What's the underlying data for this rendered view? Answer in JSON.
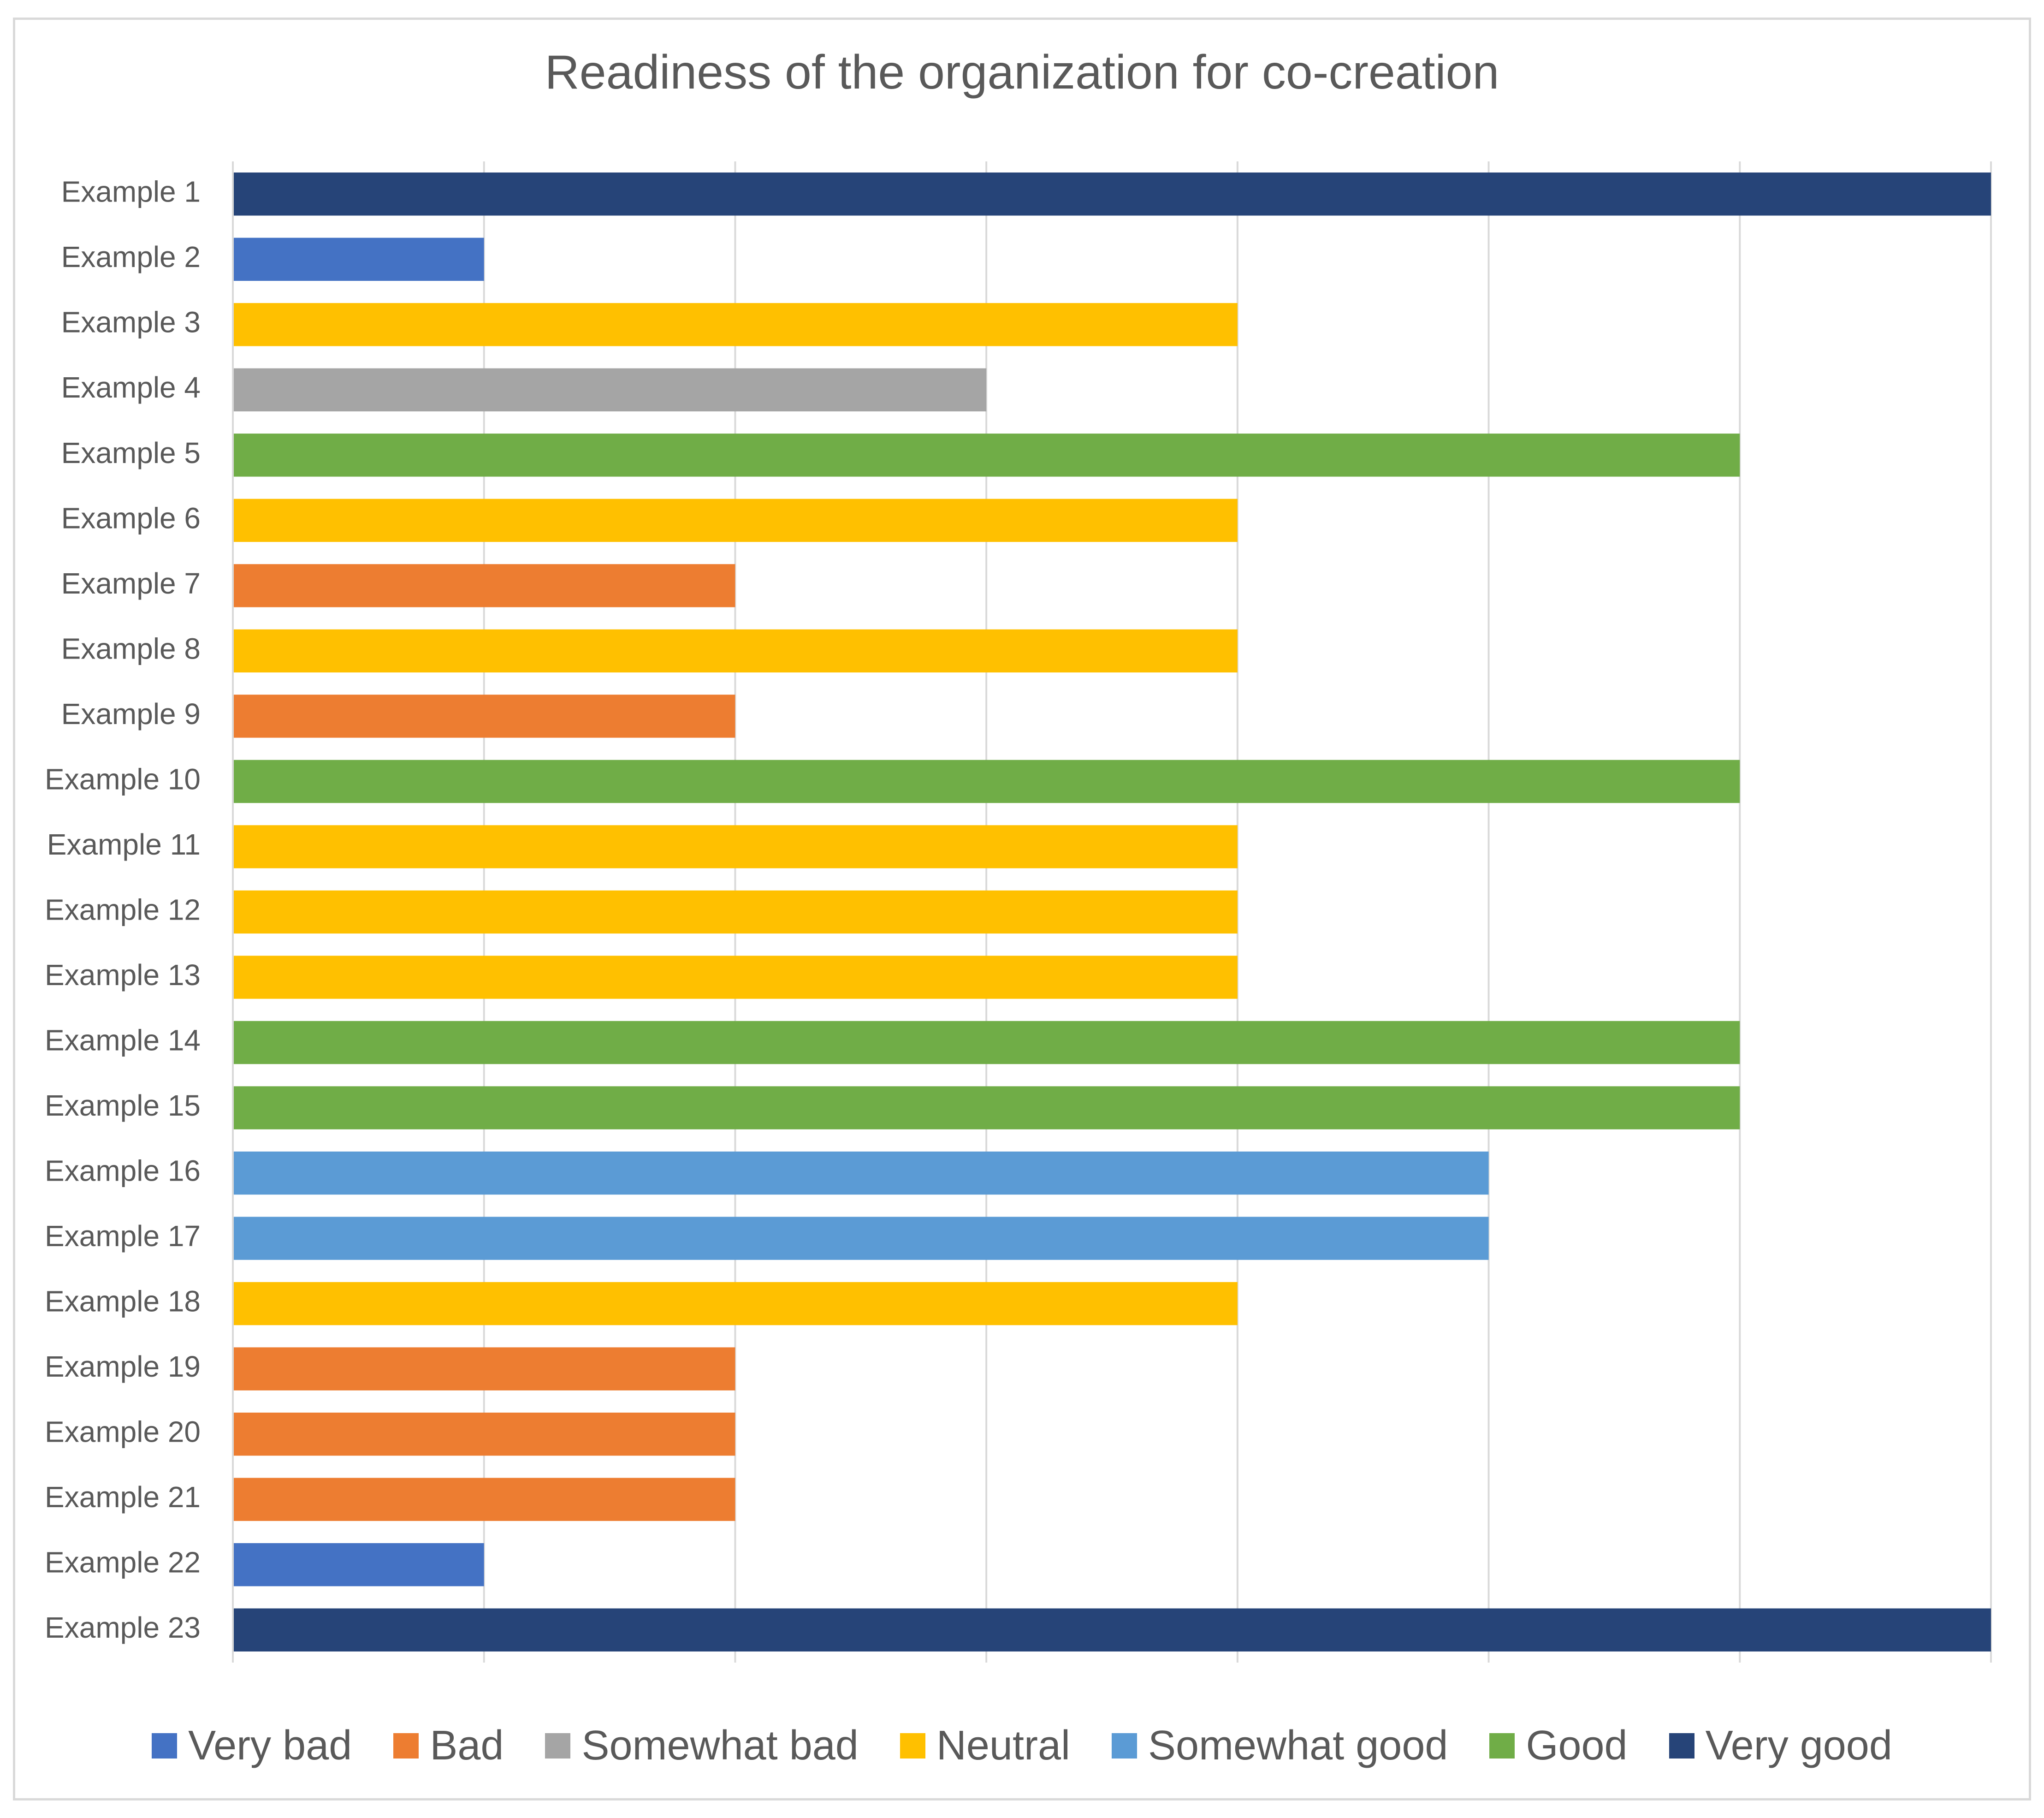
{
  "chart_data": {
    "type": "bar",
    "orientation": "horizontal",
    "title": "Readiness of the organization for co-creation",
    "xlabel": "",
    "ylabel": "",
    "xlim": [
      0,
      7
    ],
    "grid": true,
    "legend_position": "bottom",
    "categories": [
      "Example 1",
      "Example 2",
      "Example 3",
      "Example 4",
      "Example 5",
      "Example 6",
      "Example 7",
      "Example 8",
      "Example 9",
      "Example 10",
      "Example 11",
      "Example 12",
      "Example 13",
      "Example 14",
      "Example 15",
      "Example 16",
      "Example 17",
      "Example 18",
      "Example 19",
      "Example 20",
      "Example 21",
      "Example 22",
      "Example 23"
    ],
    "values": [
      7,
      1,
      4,
      3,
      6,
      4,
      2,
      4,
      2,
      6,
      4,
      4,
      4,
      6,
      6,
      5,
      5,
      4,
      2,
      2,
      2,
      1,
      7
    ],
    "legend": [
      {
        "label": "Very bad",
        "color": "#4472c4",
        "value": 1
      },
      {
        "label": "Bad",
        "color": "#ed7d31",
        "value": 2
      },
      {
        "label": "Somewhat bad",
        "color": "#a5a5a5",
        "value": 3
      },
      {
        "label": "Neutral",
        "color": "#ffc000",
        "value": 4
      },
      {
        "label": "Somewhat good",
        "color": "#5b9bd5",
        "value": 5
      },
      {
        "label": "Good",
        "color": "#70ad47",
        "value": 6
      },
      {
        "label": "Very good",
        "color": "#264478",
        "value": 7
      }
    ]
  }
}
